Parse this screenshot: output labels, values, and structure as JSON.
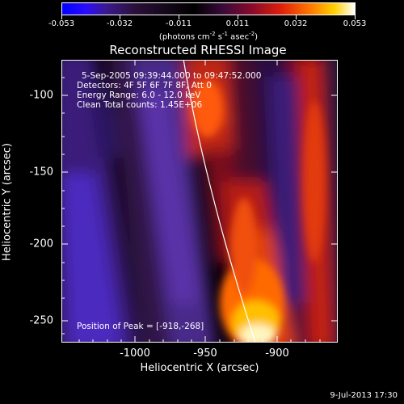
{
  "colorbar": {
    "tick_labels": [
      "-0.053",
      "-0.032",
      "-0.011",
      "0.011",
      "0.032",
      "0.053"
    ],
    "units_base": "(photons cm",
    "units_exp1": "-2",
    "units_mid1": " s",
    "units_exp2": "-1",
    "units_mid2": " asec",
    "units_exp3": "-2",
    "units_end": ")"
  },
  "title": "Reconstructed RHESSI Image",
  "annotations": {
    "time_range": "5-Sep-2005 09:39:44.000 to 09:47:52.000",
    "detectors": "Detectors: 4F 5F 6F 7F 8F, Att 0",
    "energy": "Energy Range: 6.0 - 12.0 keV",
    "clean": "Clean    Total counts: 1.45E+06",
    "peak": "Position of Peak = [-918,-268]"
  },
  "axes": {
    "xlabel": "Heliocentric X (arcsec)",
    "ylabel": "Heliocentric Y (arcsec)",
    "x_tick_labels": [
      "-1000",
      "-950",
      "-900"
    ],
    "y_tick_labels": [
      "-100",
      "-150",
      "-200",
      "-250"
    ]
  },
  "footer": {
    "date": "9-Jul-2013 17:30"
  },
  "colors": {
    "background": "#000000",
    "foreground": "#ffffff"
  }
}
